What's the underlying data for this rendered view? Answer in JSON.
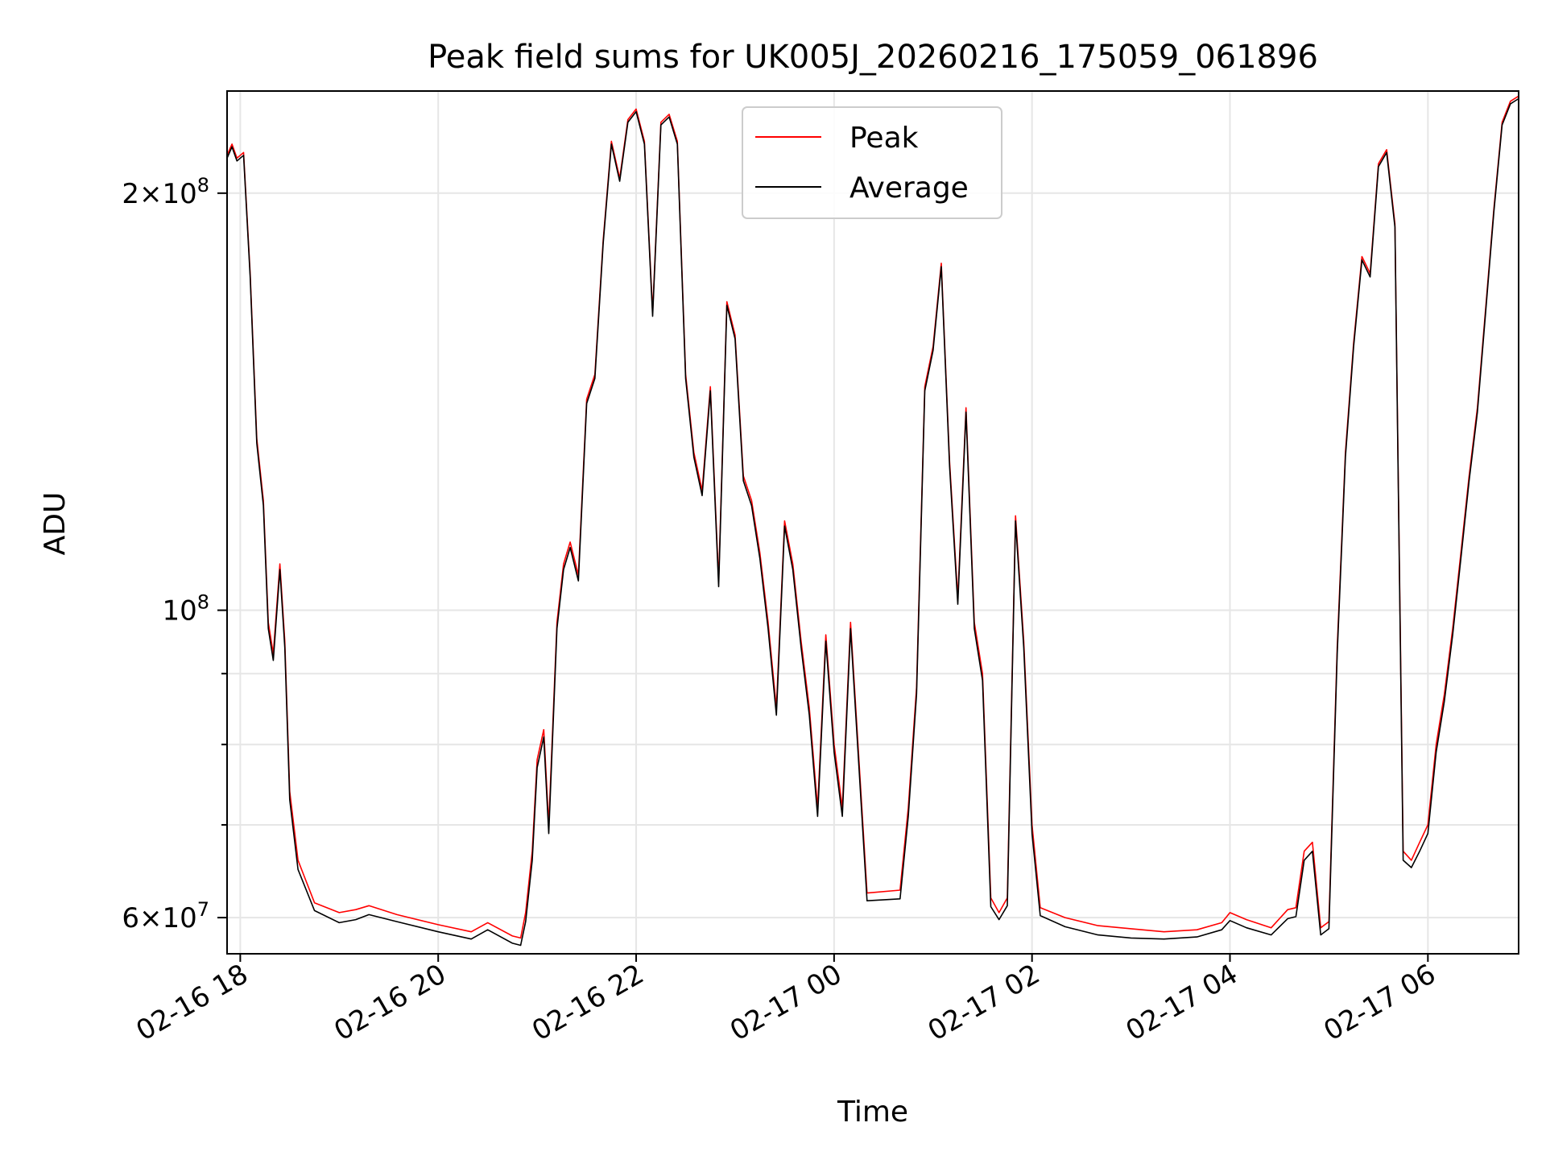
{
  "chart_data": {
    "type": "line",
    "title": "Peak field sums for UK005J_20260216_175059_061896",
    "xlabel": "Time",
    "ylabel": "ADU",
    "y_scale": "log",
    "ylim": [
      56500000,
      237000000
    ],
    "xlim": [
      "2026-02-16 17:52",
      "2026-02-17 06:55"
    ],
    "grid": true,
    "legend_position": "upper-center",
    "x_ticks": [
      {
        "t": "2026-02-16 18:00",
        "label": "02-16 18"
      },
      {
        "t": "2026-02-16 20:00",
        "label": "02-16 20"
      },
      {
        "t": "2026-02-16 22:00",
        "label": "02-16 22"
      },
      {
        "t": "2026-02-17 00:00",
        "label": "02-17 00"
      },
      {
        "t": "2026-02-17 02:00",
        "label": "02-17 02"
      },
      {
        "t": "2026-02-17 04:00",
        "label": "02-17 04"
      },
      {
        "t": "2026-02-17 06:00",
        "label": "02-17 06"
      }
    ],
    "y_ticks": [
      {
        "value": 60000000,
        "mantissa": "6",
        "exponent": "7"
      },
      {
        "value": 100000000,
        "mantissa": "",
        "exponent": "8"
      },
      {
        "value": 200000000,
        "mantissa": "2",
        "exponent": "8"
      }
    ],
    "y_minor_ticks": [
      70000000,
      80000000,
      90000000
    ],
    "series": [
      {
        "name": "Peak",
        "color": "#ff0000",
        "x": [
          "2026-02-16 17:52",
          "2026-02-16 17:55",
          "2026-02-16 17:58",
          "2026-02-16 18:02",
          "2026-02-16 18:06",
          "2026-02-16 18:10",
          "2026-02-16 18:14",
          "2026-02-16 18:17",
          "2026-02-16 18:20",
          "2026-02-16 18:24",
          "2026-02-16 18:27",
          "2026-02-16 18:30",
          "2026-02-16 18:35",
          "2026-02-16 18:45",
          "2026-02-16 19:00",
          "2026-02-16 19:10",
          "2026-02-16 19:18",
          "2026-02-16 19:35",
          "2026-02-16 20:00",
          "2026-02-16 20:20",
          "2026-02-16 20:30",
          "2026-02-16 20:45",
          "2026-02-16 20:50",
          "2026-02-16 20:53",
          "2026-02-16 20:57",
          "2026-02-16 21:00",
          "2026-02-16 21:04",
          "2026-02-16 21:07",
          "2026-02-16 21:12",
          "2026-02-16 21:16",
          "2026-02-16 21:20",
          "2026-02-16 21:25",
          "2026-02-16 21:30",
          "2026-02-16 21:35",
          "2026-02-16 21:40",
          "2026-02-16 21:45",
          "2026-02-16 21:50",
          "2026-02-16 21:55",
          "2026-02-16 22:00",
          "2026-02-16 22:05",
          "2026-02-16 22:10",
          "2026-02-16 22:15",
          "2026-02-16 22:20",
          "2026-02-16 22:25",
          "2026-02-16 22:30",
          "2026-02-16 22:35",
          "2026-02-16 22:40",
          "2026-02-16 22:45",
          "2026-02-16 22:50",
          "2026-02-16 22:55",
          "2026-02-16 23:00",
          "2026-02-16 23:05",
          "2026-02-16 23:10",
          "2026-02-16 23:15",
          "2026-02-16 23:20",
          "2026-02-16 23:25",
          "2026-02-16 23:30",
          "2026-02-16 23:35",
          "2026-02-16 23:40",
          "2026-02-16 23:45",
          "2026-02-16 23:50",
          "2026-02-16 23:55",
          "2026-02-17 00:00",
          "2026-02-17 00:05",
          "2026-02-17 00:10",
          "2026-02-17 00:20",
          "2026-02-17 00:40",
          "2026-02-17 00:45",
          "2026-02-17 00:50",
          "2026-02-17 00:55",
          "2026-02-17 01:00",
          "2026-02-17 01:05",
          "2026-02-17 01:10",
          "2026-02-17 01:15",
          "2026-02-17 01:20",
          "2026-02-17 01:25",
          "2026-02-17 01:30",
          "2026-02-17 01:35",
          "2026-02-17 01:40",
          "2026-02-17 01:45",
          "2026-02-17 01:50",
          "2026-02-17 01:55",
          "2026-02-17 02:00",
          "2026-02-17 02:05",
          "2026-02-17 02:20",
          "2026-02-17 02:40",
          "2026-02-17 03:00",
          "2026-02-17 03:20",
          "2026-02-17 03:40",
          "2026-02-17 03:55",
          "2026-02-17 04:00",
          "2026-02-17 04:10",
          "2026-02-17 04:25",
          "2026-02-17 04:35",
          "2026-02-17 04:40",
          "2026-02-17 04:45",
          "2026-02-17 04:50",
          "2026-02-17 04:55",
          "2026-02-17 05:00",
          "2026-02-17 05:05",
          "2026-02-17 05:10",
          "2026-02-17 05:15",
          "2026-02-17 05:20",
          "2026-02-17 05:25",
          "2026-02-17 05:30",
          "2026-02-17 05:35",
          "2026-02-17 05:40",
          "2026-02-17 05:45",
          "2026-02-17 05:50",
          "2026-02-17 05:55",
          "2026-02-17 06:00",
          "2026-02-17 06:05",
          "2026-02-17 06:10",
          "2026-02-17 06:15",
          "2026-02-17 06:20",
          "2026-02-17 06:25",
          "2026-02-17 06:30",
          "2026-02-17 06:35",
          "2026-02-17 06:40",
          "2026-02-17 06:45",
          "2026-02-17 06:50",
          "2026-02-17 06:55"
        ],
        "values": [
          213000000,
          217000000,
          212000000,
          214000000,
          175000000,
          133000000,
          120000000,
          98000000,
          93000000,
          108000000,
          95000000,
          74000000,
          66000000,
          61500000,
          60500000,
          60800000,
          61200000,
          60300000,
          59300000,
          58600000,
          59500000,
          58200000,
          58000000,
          60500000,
          67000000,
          78000000,
          82000000,
          70000000,
          98000000,
          108000000,
          112000000,
          106000000,
          142000000,
          148000000,
          185000000,
          218000000,
          205000000,
          226000000,
          230000000,
          218000000,
          164000000,
          225000000,
          228000000,
          218000000,
          148000000,
          130000000,
          122000000,
          145000000,
          105000000,
          167000000,
          158000000,
          125000000,
          120000000,
          110000000,
          98000000,
          85000000,
          116000000,
          108000000,
          95000000,
          85000000,
          72000000,
          96000000,
          80000000,
          72000000,
          98000000,
          62500000,
          62800000,
          72000000,
          88000000,
          145000000,
          155000000,
          178000000,
          128000000,
          102000000,
          140000000,
          98000000,
          90000000,
          62000000,
          60500000,
          62000000,
          117000000,
          95000000,
          70000000,
          61000000,
          60000000,
          59200000,
          58900000,
          58600000,
          58800000,
          59500000,
          60500000,
          59800000,
          59000000,
          60800000,
          61000000,
          67000000,
          68000000,
          59000000,
          59600000,
          94000000,
          130000000,
          156000000,
          180000000,
          175000000,
          210000000,
          215000000,
          190000000,
          67000000,
          66000000,
          68000000,
          70000000,
          80000000,
          87000000,
          97000000,
          110000000,
          125000000,
          140000000,
          165000000,
          195000000,
          225000000,
          233000000,
          235000000
        ]
      },
      {
        "name": "Average",
        "color": "#000000",
        "x": [
          "2026-02-16 17:52",
          "2026-02-16 17:55",
          "2026-02-16 17:58",
          "2026-02-16 18:02",
          "2026-02-16 18:06",
          "2026-02-16 18:10",
          "2026-02-16 18:14",
          "2026-02-16 18:17",
          "2026-02-16 18:20",
          "2026-02-16 18:24",
          "2026-02-16 18:27",
          "2026-02-16 18:30",
          "2026-02-16 18:35",
          "2026-02-16 18:45",
          "2026-02-16 19:00",
          "2026-02-16 19:10",
          "2026-02-16 19:18",
          "2026-02-16 19:35",
          "2026-02-16 20:00",
          "2026-02-16 20:20",
          "2026-02-16 20:30",
          "2026-02-16 20:45",
          "2026-02-16 20:50",
          "2026-02-16 20:53",
          "2026-02-16 20:57",
          "2026-02-16 21:00",
          "2026-02-16 21:04",
          "2026-02-16 21:07",
          "2026-02-16 21:12",
          "2026-02-16 21:16",
          "2026-02-16 21:20",
          "2026-02-16 21:25",
          "2026-02-16 21:30",
          "2026-02-16 21:35",
          "2026-02-16 21:40",
          "2026-02-16 21:45",
          "2026-02-16 21:50",
          "2026-02-16 21:55",
          "2026-02-16 22:00",
          "2026-02-16 22:05",
          "2026-02-16 22:10",
          "2026-02-16 22:15",
          "2026-02-16 22:20",
          "2026-02-16 22:25",
          "2026-02-16 22:30",
          "2026-02-16 22:35",
          "2026-02-16 22:40",
          "2026-02-16 22:45",
          "2026-02-16 22:50",
          "2026-02-16 22:55",
          "2026-02-16 23:00",
          "2026-02-16 23:05",
          "2026-02-16 23:10",
          "2026-02-16 23:15",
          "2026-02-16 23:20",
          "2026-02-16 23:25",
          "2026-02-16 23:30",
          "2026-02-16 23:35",
          "2026-02-16 23:40",
          "2026-02-16 23:45",
          "2026-02-16 23:50",
          "2026-02-16 23:55",
          "2026-02-17 00:00",
          "2026-02-17 00:05",
          "2026-02-17 00:10",
          "2026-02-17 00:20",
          "2026-02-17 00:40",
          "2026-02-17 00:45",
          "2026-02-17 00:50",
          "2026-02-17 00:55",
          "2026-02-17 01:00",
          "2026-02-17 01:05",
          "2026-02-17 01:10",
          "2026-02-17 01:15",
          "2026-02-17 01:20",
          "2026-02-17 01:25",
          "2026-02-17 01:30",
          "2026-02-17 01:35",
          "2026-02-17 01:40",
          "2026-02-17 01:45",
          "2026-02-17 01:50",
          "2026-02-17 01:55",
          "2026-02-17 02:00",
          "2026-02-17 02:05",
          "2026-02-17 02:20",
          "2026-02-17 02:40",
          "2026-02-17 03:00",
          "2026-02-17 03:20",
          "2026-02-17 03:40",
          "2026-02-17 03:55",
          "2026-02-17 04:00",
          "2026-02-17 04:10",
          "2026-02-17 04:25",
          "2026-02-17 04:35",
          "2026-02-17 04:40",
          "2026-02-17 04:45",
          "2026-02-17 04:50",
          "2026-02-17 04:55",
          "2026-02-17 05:00",
          "2026-02-17 05:05",
          "2026-02-17 05:10",
          "2026-02-17 05:15",
          "2026-02-17 05:20",
          "2026-02-17 05:25",
          "2026-02-17 05:30",
          "2026-02-17 05:35",
          "2026-02-17 05:40",
          "2026-02-17 05:45",
          "2026-02-17 05:50",
          "2026-02-17 05:55",
          "2026-02-17 06:00",
          "2026-02-17 06:05",
          "2026-02-17 06:10",
          "2026-02-17 06:15",
          "2026-02-17 06:20",
          "2026-02-17 06:25",
          "2026-02-17 06:30",
          "2026-02-17 06:35",
          "2026-02-17 06:40",
          "2026-02-17 06:45",
          "2026-02-17 06:50",
          "2026-02-17 06:55"
        ],
        "values": [
          212000000,
          216000000,
          211000000,
          213000000,
          174000000,
          132000000,
          119000000,
          97000000,
          92000000,
          107000000,
          94000000,
          73000000,
          65000000,
          60700000,
          59500000,
          59800000,
          60300000,
          59600000,
          58600000,
          57900000,
          58800000,
          57500000,
          57300000,
          59600000,
          66000000,
          77000000,
          81000000,
          69000000,
          97000000,
          107000000,
          111000000,
          105000000,
          141000000,
          147000000,
          184000000,
          217000000,
          204000000,
          225000000,
          229000000,
          217000000,
          163000000,
          224000000,
          227000000,
          217000000,
          147000000,
          129000000,
          121000000,
          144000000,
          104000000,
          166000000,
          157000000,
          124000000,
          119000000,
          109000000,
          97000000,
          84000000,
          115000000,
          107000000,
          94000000,
          84000000,
          71000000,
          95000000,
          79000000,
          71000000,
          97000000,
          61700000,
          61900000,
          71000000,
          87000000,
          144000000,
          154000000,
          177000000,
          127000000,
          101000000,
          139000000,
          97000000,
          89000000,
          61100000,
          59800000,
          61200000,
          116000000,
          94000000,
          69000000,
          60200000,
          59100000,
          58300000,
          58000000,
          57900000,
          58100000,
          58800000,
          59700000,
          59000000,
          58300000,
          59900000,
          60100000,
          66000000,
          67000000,
          58300000,
          58900000,
          93000000,
          129000000,
          155000000,
          179000000,
          174000000,
          209000000,
          214000000,
          189000000,
          66000000,
          65200000,
          67000000,
          69000000,
          79000000,
          86000000,
          96000000,
          109000000,
          124000000,
          139000000,
          164000000,
          194000000,
          224000000,
          232000000,
          234000000
        ]
      }
    ]
  }
}
